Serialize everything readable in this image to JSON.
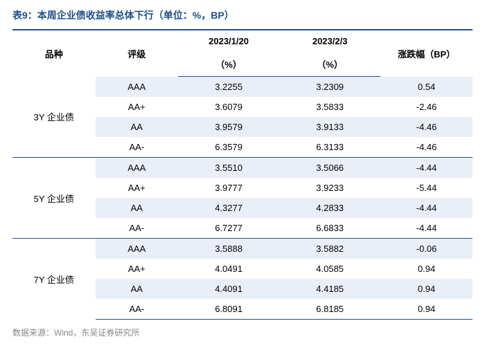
{
  "title": "表9：本周企业债收益率总体下行（单位：%，BP）",
  "columns": {
    "variety": "品种",
    "rating": "评级",
    "date1_header": "2023/1/20",
    "date2_header": "2023/2/3",
    "unit_pct": "（%）",
    "change_header": "涨跌幅（BP）"
  },
  "groups": [
    {
      "name": "3Y 企业债",
      "rows": [
        {
          "rating": "AAA",
          "v1": "3.2255",
          "v2": "3.2309",
          "chg": "0.54"
        },
        {
          "rating": "AA+",
          "v1": "3.6079",
          "v2": "3.5833",
          "chg": "-2.46"
        },
        {
          "rating": "AA",
          "v1": "3.9579",
          "v2": "3.9133",
          "chg": "-4.46"
        },
        {
          "rating": "AA-",
          "v1": "6.3579",
          "v2": "6.3133",
          "chg": "-4.46"
        }
      ]
    },
    {
      "name": "5Y 企业债",
      "rows": [
        {
          "rating": "AAA",
          "v1": "3.5510",
          "v2": "3.5066",
          "chg": "-4.44"
        },
        {
          "rating": "AA+",
          "v1": "3.9777",
          "v2": "3.9233",
          "chg": "-5.44"
        },
        {
          "rating": "AA",
          "v1": "4.3277",
          "v2": "4.2833",
          "chg": "-4.44"
        },
        {
          "rating": "AA-",
          "v1": "6.7277",
          "v2": "6.6833",
          "chg": "-4.44"
        }
      ]
    },
    {
      "name": "7Y 企业债",
      "rows": [
        {
          "rating": "AAA",
          "v1": "3.5888",
          "v2": "3.5882",
          "chg": "-0.06"
        },
        {
          "rating": "AA+",
          "v1": "4.0491",
          "v2": "4.0585",
          "chg": "0.94"
        },
        {
          "rating": "AA",
          "v1": "4.4091",
          "v2": "4.4185",
          "chg": "0.94"
        },
        {
          "rating": "AA-",
          "v1": "6.8091",
          "v2": "6.8185",
          "chg": "0.94"
        }
      ]
    }
  ],
  "source_label": "数据来源：",
  "source_value": "Wind，东吴证券研究所",
  "styling": {
    "title_color": "#1f4e8c",
    "border_color": "#1f4e8c",
    "alt_row_bg": "#eaeef7",
    "background": "#ffffff",
    "source_color": "#888888",
    "font_size_body": 13,
    "font_size_title": 14,
    "font_size_source": 12
  }
}
